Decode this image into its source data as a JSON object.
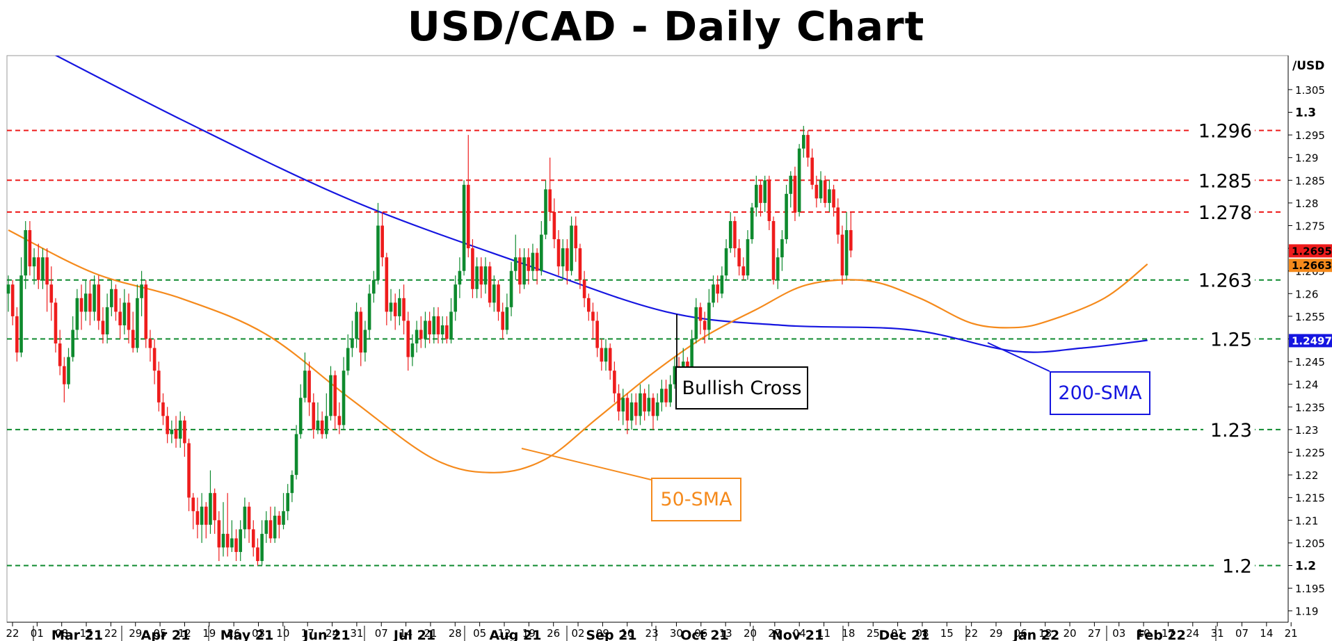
{
  "chart_data": {
    "type": "candlestick",
    "title": "USD/CAD - Daily Chart",
    "y_axis_unit": "/USD",
    "ylim": [
      1.1875,
      1.3125
    ],
    "y_ticks": [
      "1.305",
      "1.3",
      "1.295",
      "1.29",
      "1.285",
      "1.28",
      "1.275",
      "1.27",
      "1.265",
      "1.26",
      "1.255",
      "1.25",
      "1.245",
      "1.24",
      "1.235",
      "1.23",
      "1.225",
      "1.22",
      "1.215",
      "1.21",
      "1.205",
      "1.2",
      "1.195",
      "1.19"
    ],
    "y_ticks_bold": [
      "1.3",
      "1.2"
    ],
    "x_day_ticks": [
      "22",
      "01",
      "08",
      "15",
      "22",
      "29",
      "05",
      "12",
      "19",
      "26",
      "03",
      "10",
      "17",
      "24",
      "31",
      "07",
      "14",
      "21",
      "28",
      "05",
      "12",
      "19",
      "26",
      "02",
      "09",
      "16",
      "23",
      "30",
      "06",
      "13",
      "20",
      "27",
      "04",
      "11",
      "18",
      "25",
      "01",
      "08",
      "15",
      "22",
      "29",
      "06",
      "13",
      "20",
      "27",
      "03",
      "10",
      "17",
      "24",
      "31",
      "07",
      "14",
      "21"
    ],
    "x_months": [
      "Mar 21",
      "Apr 21",
      "May 21",
      "Jun 21",
      "Jul 21",
      "Aug 21",
      "Sep 21",
      "Oct 21",
      "Nov 21",
      "Dec 21",
      "Jan 22",
      "Feb 22"
    ],
    "levels": [
      {
        "value": 1.296,
        "label": "1.296",
        "color": "#ee1c1c",
        "style": "dashed"
      },
      {
        "value": 1.285,
        "label": "1.285",
        "color": "#ee1c1c",
        "style": "dashed"
      },
      {
        "value": 1.278,
        "label": "1.278",
        "color": "#ee1c1c",
        "style": "dashed"
      },
      {
        "value": 1.263,
        "label": "1.263",
        "color": "#0e8a2e",
        "style": "dashed"
      },
      {
        "value": 1.25,
        "label": "1.25",
        "color": "#0e8a2e",
        "style": "dashed"
      },
      {
        "value": 1.23,
        "label": "1.23",
        "color": "#0e8a2e",
        "style": "dashed"
      },
      {
        "value": 1.2,
        "label": "1.2",
        "color": "#0e8a2e",
        "style": "dashed"
      }
    ],
    "price_tags": [
      {
        "label": "1.2695",
        "value": 1.2695,
        "color": "#ee1c1c",
        "text_color": "#000000"
      },
      {
        "label": "1.2663",
        "value": 1.2663,
        "color": "#f58a1c",
        "text_color": "#000000"
      },
      {
        "label": "1.2497",
        "value": 1.2497,
        "color": "#1515e0",
        "text_color": "#ffffff"
      }
    ],
    "candle_colors": {
      "up": "#0e8a2e",
      "down": "#ee1c1c"
    },
    "candles": [
      [
        1.26,
        1.262,
        1.256,
        1.264
      ],
      [
        1.262,
        1.255,
        1.253,
        1.263
      ],
      [
        1.255,
        1.247,
        1.245,
        1.257
      ],
      [
        1.247,
        1.264,
        1.246,
        1.268
      ],
      [
        1.264,
        1.274,
        1.261,
        1.276
      ],
      [
        1.274,
        1.266,
        1.264,
        1.276
      ],
      [
        1.266,
        1.268,
        1.262,
        1.27
      ],
      [
        1.268,
        1.263,
        1.261,
        1.271
      ],
      [
        1.263,
        1.268,
        1.261,
        1.27
      ],
      [
        1.268,
        1.262,
        1.256,
        1.27
      ],
      [
        1.262,
        1.258,
        1.254,
        1.266
      ],
      [
        1.258,
        1.249,
        1.247,
        1.259
      ],
      [
        1.249,
        1.244,
        1.242,
        1.252
      ],
      [
        1.244,
        1.24,
        1.236,
        1.246
      ],
      [
        1.24,
        1.246,
        1.239,
        1.248
      ],
      [
        1.246,
        1.252,
        1.245,
        1.255
      ],
      [
        1.252,
        1.259,
        1.25,
        1.261
      ],
      [
        1.259,
        1.256,
        1.252,
        1.262
      ],
      [
        1.256,
        1.26,
        1.254,
        1.263
      ],
      [
        1.26,
        1.256,
        1.253,
        1.263
      ],
      [
        1.256,
        1.262,
        1.254,
        1.264
      ],
      [
        1.262,
        1.254,
        1.252,
        1.264
      ],
      [
        1.254,
        1.251,
        1.249,
        1.257
      ],
      [
        1.251,
        1.257,
        1.249,
        1.26
      ],
      [
        1.257,
        1.261,
        1.255,
        1.263
      ],
      [
        1.261,
        1.256,
        1.254,
        1.262
      ],
      [
        1.256,
        1.253,
        1.25,
        1.259
      ],
      [
        1.253,
        1.258,
        1.251,
        1.261
      ],
      [
        1.258,
        1.252,
        1.249,
        1.26
      ],
      [
        1.252,
        1.248,
        1.247,
        1.256
      ],
      [
        1.248,
        1.259,
        1.247,
        1.262
      ],
      [
        1.259,
        1.262,
        1.255,
        1.265
      ],
      [
        1.262,
        1.25,
        1.248,
        1.263
      ],
      [
        1.25,
        1.248,
        1.245,
        1.252
      ],
      [
        1.248,
        1.243,
        1.24,
        1.25
      ],
      [
        1.243,
        1.236,
        1.234,
        1.245
      ],
      [
        1.236,
        1.233,
        1.231,
        1.238
      ],
      [
        1.233,
        1.229,
        1.227,
        1.235
      ],
      [
        1.229,
        1.23,
        1.227,
        1.232
      ],
      [
        1.23,
        1.228,
        1.226,
        1.233
      ],
      [
        1.228,
        1.232,
        1.226,
        1.234
      ],
      [
        1.232,
        1.227,
        1.224,
        1.233
      ],
      [
        1.227,
        1.215,
        1.212,
        1.228
      ],
      [
        1.215,
        1.212,
        1.208,
        1.216
      ],
      [
        1.212,
        1.209,
        1.206,
        1.215
      ],
      [
        1.209,
        1.213,
        1.205,
        1.216
      ],
      [
        1.213,
        1.209,
        1.206,
        1.214
      ],
      [
        1.209,
        1.216,
        1.207,
        1.221
      ],
      [
        1.216,
        1.21,
        1.207,
        1.217
      ],
      [
        1.21,
        1.204,
        1.201,
        1.212
      ],
      [
        1.204,
        1.207,
        1.202,
        1.214
      ],
      [
        1.207,
        1.204,
        1.202,
        1.216
      ],
      [
        1.204,
        1.206,
        1.203,
        1.21
      ],
      [
        1.206,
        1.203,
        1.201,
        1.208
      ],
      [
        1.203,
        1.208,
        1.201,
        1.21
      ],
      [
        1.208,
        1.213,
        1.206,
        1.215
      ],
      [
        1.213,
        1.208,
        1.205,
        1.214
      ],
      [
        1.208,
        1.204,
        1.202,
        1.21
      ],
      [
        1.204,
        1.201,
        1.2,
        1.206
      ],
      [
        1.201,
        1.207,
        1.2,
        1.21
      ],
      [
        1.207,
        1.21,
        1.205,
        1.212
      ],
      [
        1.21,
        1.206,
        1.205,
        1.213
      ],
      [
        1.206,
        1.211,
        1.205,
        1.213
      ],
      [
        1.211,
        1.209,
        1.206,
        1.212
      ],
      [
        1.209,
        1.212,
        1.208,
        1.216
      ],
      [
        1.212,
        1.216,
        1.21,
        1.218
      ],
      [
        1.216,
        1.22,
        1.214,
        1.221
      ],
      [
        1.22,
        1.229,
        1.219,
        1.231
      ],
      [
        1.229,
        1.237,
        1.228,
        1.24
      ],
      [
        1.237,
        1.243,
        1.236,
        1.247
      ],
      [
        1.243,
        1.236,
        1.233,
        1.245
      ],
      [
        1.236,
        1.23,
        1.228,
        1.238
      ],
      [
        1.23,
        1.232,
        1.229,
        1.236
      ],
      [
        1.232,
        1.229,
        1.228,
        1.234
      ],
      [
        1.229,
        1.233,
        1.228,
        1.238
      ],
      [
        1.233,
        1.242,
        1.232,
        1.244
      ],
      [
        1.242,
        1.233,
        1.23,
        1.243
      ],
      [
        1.233,
        1.231,
        1.229,
        1.236
      ],
      [
        1.231,
        1.243,
        1.23,
        1.246
      ],
      [
        1.243,
        1.248,
        1.242,
        1.251
      ],
      [
        1.248,
        1.25,
        1.246,
        1.254
      ],
      [
        1.25,
        1.256,
        1.248,
        1.258
      ],
      [
        1.256,
        1.247,
        1.244,
        1.257
      ],
      [
        1.247,
        1.252,
        1.245,
        1.254
      ],
      [
        1.252,
        1.26,
        1.25,
        1.262
      ],
      [
        1.26,
        1.263,
        1.258,
        1.265
      ],
      [
        1.263,
        1.275,
        1.262,
        1.28
      ],
      [
        1.275,
        1.268,
        1.266,
        1.278
      ],
      [
        1.268,
        1.256,
        1.253,
        1.269
      ],
      [
        1.256,
        1.258,
        1.254,
        1.261
      ],
      [
        1.258,
        1.255,
        1.252,
        1.26
      ],
      [
        1.255,
        1.259,
        1.253,
        1.261
      ],
      [
        1.259,
        1.254,
        1.251,
        1.262
      ],
      [
        1.254,
        1.246,
        1.243,
        1.256
      ],
      [
        1.246,
        1.249,
        1.244,
        1.251
      ],
      [
        1.249,
        1.252,
        1.247,
        1.254
      ],
      [
        1.252,
        1.25,
        1.248,
        1.255
      ],
      [
        1.25,
        1.254,
        1.248,
        1.256
      ],
      [
        1.254,
        1.251,
        1.249,
        1.256
      ],
      [
        1.251,
        1.255,
        1.249,
        1.257
      ],
      [
        1.255,
        1.251,
        1.249,
        1.257
      ],
      [
        1.251,
        1.253,
        1.249,
        1.255
      ],
      [
        1.253,
        1.25,
        1.249,
        1.255
      ],
      [
        1.25,
        1.256,
        1.249,
        1.259
      ],
      [
        1.256,
        1.262,
        1.254,
        1.264
      ],
      [
        1.262,
        1.265,
        1.259,
        1.268
      ],
      [
        1.265,
        1.284,
        1.264,
        1.285
      ],
      [
        1.284,
        1.27,
        1.268,
        1.295
      ],
      [
        1.27,
        1.261,
        1.259,
        1.272
      ],
      [
        1.261,
        1.266,
        1.259,
        1.268
      ],
      [
        1.266,
        1.262,
        1.259,
        1.268
      ],
      [
        1.262,
        1.266,
        1.26,
        1.268
      ],
      [
        1.266,
        1.258,
        1.257,
        1.267
      ],
      [
        1.258,
        1.262,
        1.256,
        1.264
      ],
      [
        1.262,
        1.256,
        1.254,
        1.263
      ],
      [
        1.256,
        1.252,
        1.25,
        1.258
      ],
      [
        1.252,
        1.257,
        1.251,
        1.26
      ],
      [
        1.257,
        1.265,
        1.255,
        1.267
      ],
      [
        1.265,
        1.268,
        1.263,
        1.273
      ],
      [
        1.268,
        1.262,
        1.26,
        1.27
      ],
      [
        1.262,
        1.268,
        1.261,
        1.27
      ],
      [
        1.268,
        1.265,
        1.262,
        1.27
      ],
      [
        1.265,
        1.269,
        1.263,
        1.271
      ],
      [
        1.269,
        1.265,
        1.262,
        1.27
      ],
      [
        1.265,
        1.273,
        1.264,
        1.276
      ],
      [
        1.273,
        1.283,
        1.272,
        1.285
      ],
      [
        1.283,
        1.278,
        1.276,
        1.29
      ],
      [
        1.278,
        1.272,
        1.27,
        1.281
      ],
      [
        1.272,
        1.266,
        1.264,
        1.274
      ],
      [
        1.266,
        1.27,
        1.263,
        1.272
      ],
      [
        1.27,
        1.265,
        1.262,
        1.272
      ],
      [
        1.265,
        1.275,
        1.264,
        1.277
      ],
      [
        1.275,
        1.27,
        1.267,
        1.277
      ],
      [
        1.27,
        1.263,
        1.261,
        1.271
      ],
      [
        1.263,
        1.259,
        1.257,
        1.265
      ],
      [
        1.259,
        1.256,
        1.254,
        1.26
      ],
      [
        1.256,
        1.254,
        1.25,
        1.258
      ],
      [
        1.254,
        1.248,
        1.246,
        1.256
      ],
      [
        1.248,
        1.245,
        1.243,
        1.25
      ],
      [
        1.245,
        1.248,
        1.243,
        1.25
      ],
      [
        1.248,
        1.243,
        1.241,
        1.249
      ],
      [
        1.243,
        1.238,
        1.236,
        1.245
      ],
      [
        1.238,
        1.234,
        1.232,
        1.24
      ],
      [
        1.234,
        1.237,
        1.231,
        1.239
      ],
      [
        1.237,
        1.232,
        1.229,
        1.238
      ],
      [
        1.232,
        1.236,
        1.23,
        1.238
      ],
      [
        1.236,
        1.233,
        1.231,
        1.238
      ],
      [
        1.233,
        1.238,
        1.231,
        1.24
      ],
      [
        1.238,
        1.234,
        1.232,
        1.239
      ],
      [
        1.234,
        1.237,
        1.233,
        1.24
      ],
      [
        1.237,
        1.233,
        1.23,
        1.238
      ],
      [
        1.233,
        1.236,
        1.232,
        1.238
      ],
      [
        1.236,
        1.239,
        1.234,
        1.241
      ],
      [
        1.239,
        1.236,
        1.235,
        1.241
      ],
      [
        1.236,
        1.24,
        1.235,
        1.242
      ],
      [
        1.24,
        1.244,
        1.239,
        1.246
      ],
      [
        1.244,
        1.241,
        1.239,
        1.246
      ],
      [
        1.241,
        1.245,
        1.24,
        1.248
      ],
      [
        1.245,
        1.243,
        1.239,
        1.246
      ],
      [
        1.243,
        1.25,
        1.242,
        1.252
      ],
      [
        1.25,
        1.257,
        1.249,
        1.259
      ],
      [
        1.257,
        1.254,
        1.251,
        1.258
      ],
      [
        1.254,
        1.252,
        1.249,
        1.256
      ],
      [
        1.252,
        1.258,
        1.25,
        1.261
      ],
      [
        1.258,
        1.262,
        1.257,
        1.264
      ],
      [
        1.262,
        1.26,
        1.258,
        1.264
      ],
      [
        1.26,
        1.264,
        1.259,
        1.266
      ],
      [
        1.264,
        1.27,
        1.263,
        1.272
      ],
      [
        1.27,
        1.276,
        1.269,
        1.278
      ],
      [
        1.276,
        1.27,
        1.268,
        1.277
      ],
      [
        1.27,
        1.266,
        1.264,
        1.272
      ],
      [
        1.266,
        1.264,
        1.263,
        1.268
      ],
      [
        1.264,
        1.272,
        1.263,
        1.274
      ],
      [
        1.272,
        1.279,
        1.271,
        1.28
      ],
      [
        1.279,
        1.284,
        1.277,
        1.286
      ],
      [
        1.284,
        1.28,
        1.277,
        1.285
      ],
      [
        1.28,
        1.285,
        1.278,
        1.286
      ],
      [
        1.285,
        1.276,
        1.274,
        1.286
      ],
      [
        1.276,
        1.263,
        1.262,
        1.277
      ],
      [
        1.263,
        1.268,
        1.261,
        1.27
      ],
      [
        1.268,
        1.272,
        1.265,
        1.274
      ],
      [
        1.272,
        1.282,
        1.271,
        1.284
      ],
      [
        1.282,
        1.286,
        1.279,
        1.287
      ],
      [
        1.286,
        1.278,
        1.276,
        1.288
      ],
      [
        1.278,
        1.292,
        1.277,
        1.293
      ],
      [
        1.292,
        1.295,
        1.29,
        1.297
      ],
      [
        1.295,
        1.29,
        1.288,
        1.296
      ],
      [
        1.29,
        1.284,
        1.283,
        1.292
      ],
      [
        1.284,
        1.281,
        1.279,
        1.286
      ],
      [
        1.281,
        1.285,
        1.28,
        1.287
      ],
      [
        1.285,
        1.28,
        1.279,
        1.286
      ],
      [
        1.28,
        1.283,
        1.278,
        1.285
      ],
      [
        1.283,
        1.279,
        1.277,
        1.284
      ],
      [
        1.279,
        1.273,
        1.271,
        1.281
      ],
      [
        1.273,
        1.264,
        1.262,
        1.275
      ],
      [
        1.264,
        1.274,
        1.263,
        1.278
      ],
      [
        1.274,
        1.2695,
        1.268,
        1.278
      ]
    ],
    "sma50_anchors": [
      [
        0,
        1.274
      ],
      [
        20,
        1.2645
      ],
      [
        40,
        1.259
      ],
      [
        60,
        1.251
      ],
      [
        80,
        1.2365
      ],
      [
        99,
        1.2235
      ],
      [
        113,
        1.2205
      ],
      [
        125,
        1.2235
      ],
      [
        137,
        1.2325
      ],
      [
        150,
        1.2425
      ],
      [
        162,
        1.2505
      ],
      [
        174,
        1.2565
      ],
      [
        186,
        1.262
      ],
      [
        200,
        1.2628
      ],
      [
        212,
        1.259
      ],
      [
        224,
        1.2535
      ],
      [
        234,
        1.2525
      ],
      [
        242,
        1.254
      ],
      [
        255,
        1.259
      ],
      [
        265,
        1.2665
      ]
    ],
    "sma200_anchors": [
      [
        0,
        1.318
      ],
      [
        40,
        1.2985
      ],
      [
        80,
        1.2805
      ],
      [
        120,
        1.2665
      ],
      [
        153,
        1.256
      ],
      [
        180,
        1.253
      ],
      [
        210,
        1.252
      ],
      [
        234,
        1.2473
      ],
      [
        250,
        1.248
      ],
      [
        265,
        1.2497
      ]
    ],
    "annotations": [
      {
        "text": "Bullish Cross",
        "color": "#000000"
      },
      {
        "text": "200-SMA",
        "color": "#1515e0"
      },
      {
        "text": "50-SMA",
        "color": "#f58a1c"
      }
    ]
  }
}
